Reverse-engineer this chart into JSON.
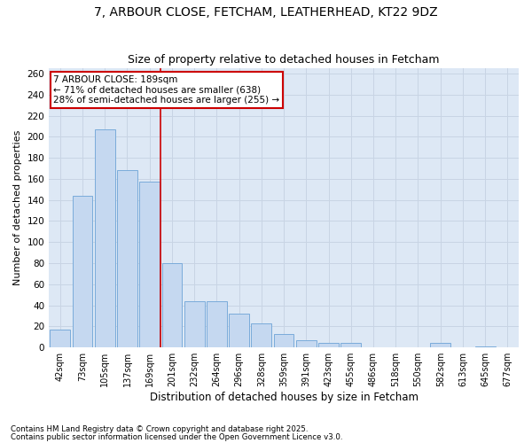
{
  "title1": "7, ARBOUR CLOSE, FETCHAM, LEATHERHEAD, KT22 9DZ",
  "title2": "Size of property relative to detached houses in Fetcham",
  "xlabel": "Distribution of detached houses by size in Fetcham",
  "ylabel": "Number of detached properties",
  "bar_labels": [
    "42sqm",
    "73sqm",
    "105sqm",
    "137sqm",
    "169sqm",
    "201sqm",
    "232sqm",
    "264sqm",
    "296sqm",
    "328sqm",
    "359sqm",
    "391sqm",
    "423sqm",
    "455sqm",
    "486sqm",
    "518sqm",
    "550sqm",
    "582sqm",
    "613sqm",
    "645sqm",
    "677sqm"
  ],
  "bar_values": [
    17,
    144,
    207,
    168,
    157,
    80,
    44,
    44,
    32,
    23,
    13,
    7,
    4,
    4,
    0,
    0,
    0,
    4,
    0,
    1,
    0
  ],
  "bar_color": "#c5d8f0",
  "bar_edge_color": "#7aabda",
  "grid_color": "#c8d4e4",
  "background_color": "#dde8f5",
  "vline_color": "#cc0000",
  "annotation_text": "7 ARBOUR CLOSE: 189sqm\n← 71% of detached houses are smaller (638)\n28% of semi-detached houses are larger (255) →",
  "annotation_box_color": "#ffffff",
  "annotation_box_edge": "#cc0000",
  "ylim": [
    0,
    265
  ],
  "yticks": [
    0,
    20,
    40,
    60,
    80,
    100,
    120,
    140,
    160,
    180,
    200,
    220,
    240,
    260
  ],
  "footer1": "Contains HM Land Registry data © Crown copyright and database right 2025.",
  "footer2": "Contains public sector information licensed under the Open Government Licence v3.0."
}
